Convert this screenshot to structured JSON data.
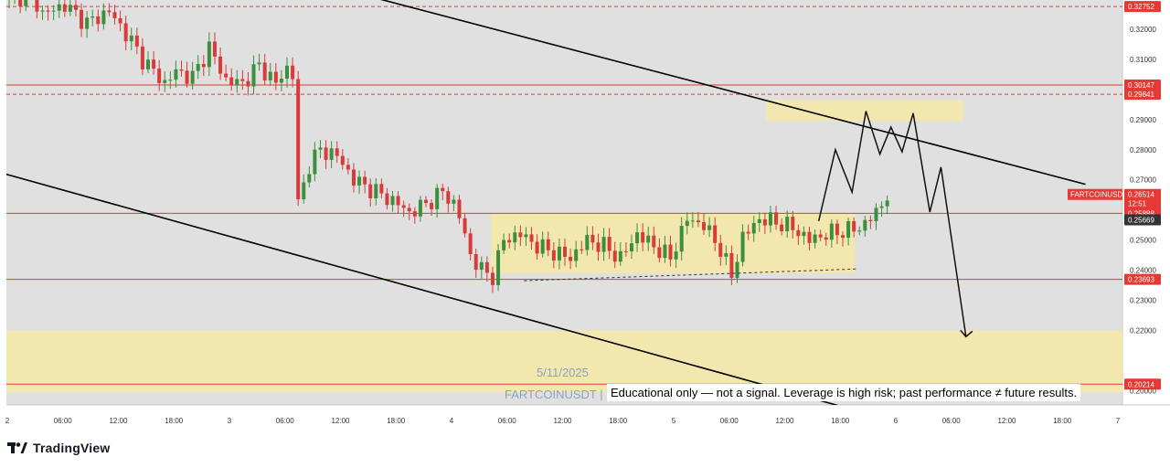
{
  "app": {
    "brand": "TradingView",
    "watermark_date": "5/11/2025",
    "watermark_symbol": "FARTCOINUSDT | 1",
    "disclaimer": "Educational only — not a signal. Leverage is high risk; past performance ≠ future results."
  },
  "colors": {
    "background": "#e0e0e0",
    "zone_fill": "#f5e9a6",
    "level_red": "#e53935",
    "trendline": "#000000",
    "candle_up": "#3c8f3c",
    "candle_down": "#d93a3a",
    "badge_red": "#e53935",
    "badge_dark": "#333333"
  },
  "chart_data": {
    "type": "candlestick",
    "symbol": "FARTCOINUSDT",
    "ylim": [
      0.195,
      0.33
    ],
    "y_ticks": [
      "0.32000",
      "0.31000",
      "0.29000",
      "0.28000",
      "0.27000",
      "0.25000",
      "0.24000",
      "0.23000",
      "0.22000",
      "0.20000"
    ],
    "x_ticks": [
      "2",
      "06:00",
      "12:00",
      "18:00",
      "3",
      "06:00",
      "12:00",
      "18:00",
      "4",
      "06:00",
      "12:00",
      "18:00",
      "5",
      "06:00",
      "12:00",
      "18:00",
      "6",
      "06:00",
      "12:00",
      "18:00",
      "7"
    ],
    "levels": [
      {
        "label": "0.32752",
        "value": 0.32752,
        "style": "dashed"
      },
      {
        "label": "0.30147",
        "value": 0.30147,
        "style": "solid"
      },
      {
        "label": "0.29841",
        "value": 0.29841,
        "style": "dashed"
      },
      {
        "label": "0.25888",
        "value": 0.25888,
        "style": "solid"
      },
      {
        "label": "0.23693",
        "value": 0.23693,
        "style": "solid"
      },
      {
        "label": "0.20214",
        "value": 0.20214,
        "style": "solid"
      }
    ],
    "current_price": {
      "symbol_label": "FARTCOINUSDT",
      "price": "0.26514",
      "countdown": "12:51"
    },
    "extra_price_label": "0.25669",
    "candle_path": [
      [
        0,
        0.33
      ],
      [
        4,
        0.332
      ],
      [
        6,
        0.325
      ],
      [
        10,
        0.328
      ],
      [
        14,
        0.322
      ],
      [
        18,
        0.326
      ],
      [
        22,
        0.316
      ],
      [
        24,
        0.31
      ],
      [
        28,
        0.302
      ],
      [
        30,
        0.306
      ],
      [
        33,
        0.304
      ],
      [
        36,
        0.314
      ],
      [
        39,
        0.303
      ],
      [
        42,
        0.302
      ],
      [
        45,
        0.308
      ],
      [
        48,
        0.302
      ],
      [
        50,
        0.307
      ],
      [
        51,
        0.305
      ],
      [
        52,
        0.262
      ],
      [
        54,
        0.275
      ],
      [
        56,
        0.28
      ],
      [
        59,
        0.278
      ],
      [
        62,
        0.27
      ],
      [
        65,
        0.267
      ],
      [
        67,
        0.265
      ],
      [
        70,
        0.262
      ],
      [
        72,
        0.259
      ],
      [
        75,
        0.262
      ],
      [
        78,
        0.266
      ],
      [
        80,
        0.262
      ],
      [
        81,
        0.258
      ],
      [
        83,
        0.245
      ],
      [
        85,
        0.24
      ],
      [
        87,
        0.238
      ],
      [
        89,
        0.25
      ],
      [
        92,
        0.252
      ],
      [
        95,
        0.248
      ],
      [
        98,
        0.246
      ],
      [
        101,
        0.244
      ],
      [
        104,
        0.25
      ],
      [
        107,
        0.248
      ],
      [
        110,
        0.244
      ],
      [
        113,
        0.252
      ],
      [
        116,
        0.248
      ],
      [
        119,
        0.244
      ],
      [
        122,
        0.257
      ],
      [
        125,
        0.255
      ],
      [
        128,
        0.247
      ],
      [
        130,
        0.238
      ],
      [
        132,
        0.251
      ],
      [
        135,
        0.257
      ],
      [
        138,
        0.256
      ],
      [
        141,
        0.254
      ],
      [
        144,
        0.25
      ],
      [
        147,
        0.252
      ],
      [
        150,
        0.253
      ],
      [
        153,
        0.254
      ],
      [
        156,
        0.259
      ],
      [
        158,
        0.265
      ]
    ],
    "zones": [
      {
        "name": "upper-resistance-zone",
        "x0": 136.5,
        "x1": 172,
        "y0": 0.2895,
        "y1": 0.2965
      },
      {
        "name": "range-box",
        "x0": 87,
        "x1": 152.5,
        "y0": 0.2389,
        "y1": 0.2589
      },
      {
        "name": "lower-support-zone",
        "x0": -1.5,
        "x1": 202,
        "y0": 0.1995,
        "y1": 0.22
      }
    ],
    "trendlines": [
      {
        "name": "upper-channel-line",
        "from": [
          67,
          0.33
        ],
        "to": [
          194,
          0.2685
        ]
      },
      {
        "name": "lower-channel-line",
        "from": [
          -1.5,
          0.2725
        ],
        "to": [
          152.5,
          0.1935
        ]
      }
    ],
    "dashed_support": {
      "from": [
        93,
        0.2365
      ],
      "to": [
        153,
        0.2404
      ]
    },
    "projection_path": [
      [
        146,
        0.2563
      ],
      [
        149,
        0.28
      ],
      [
        152,
        0.2659
      ],
      [
        154.5,
        0.2928
      ],
      [
        157,
        0.2785
      ],
      [
        159,
        0.2875
      ],
      [
        161,
        0.2793
      ],
      [
        163,
        0.2921
      ],
      [
        166,
        0.2593
      ],
      [
        168,
        0.2742
      ],
      [
        172.5,
        0.2179
      ]
    ]
  }
}
